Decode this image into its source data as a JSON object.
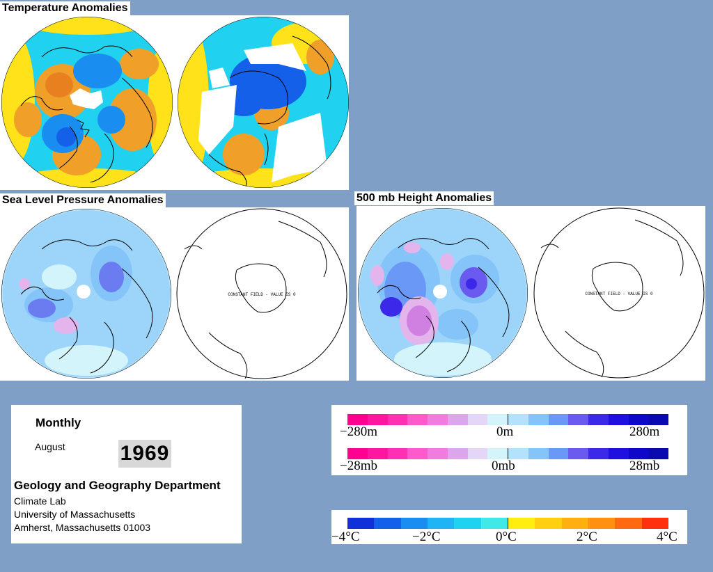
{
  "titles": {
    "temperature": "Temperature Anomalies",
    "slp": "Sea Level Pressure Anomalies",
    "h500": "500 mb Height Anomalies"
  },
  "constant_field_text": "CONSTANT FIELD - VALUE IS 0",
  "info": {
    "period": "Monthly",
    "month": "August",
    "year": "1969",
    "department": "Geology and Geography Department",
    "lines": [
      "Climate Lab",
      "University of Massachusetts",
      "Amherst, Massachusetts 01003"
    ]
  },
  "height_scale": {
    "colors": [
      "#ff0090",
      "#ff16a0",
      "#ff30b4",
      "#ff5acc",
      "#f07ce0",
      "#dba6ec",
      "#e4d6f6",
      "#d2f4fa",
      "#b4e2fc",
      "#84c4f8",
      "#6a98f6",
      "#6a5af0",
      "#3c28e8",
      "#2010e0",
      "#1008c8",
      "#0a0ab0"
    ],
    "labels": [
      "−280m",
      "0m",
      "280m"
    ]
  },
  "pressure_scale": {
    "labels": [
      "−28mb",
      "0mb",
      "28mb"
    ]
  },
  "temp_scale": {
    "colors": [
      "#1030d8",
      "#1460e8",
      "#1a8ef0",
      "#20b4f4",
      "#20d2f0",
      "#40e8e8",
      "#ffee10",
      "#ffd010",
      "#ffb010",
      "#ff9010",
      "#ff6a10",
      "#ff3010"
    ],
    "labels": [
      "−4°C",
      "−2°C",
      "0°C",
      "2°C",
      "4°C"
    ]
  }
}
